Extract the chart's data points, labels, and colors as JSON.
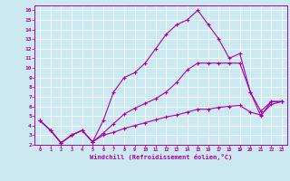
{
  "xlabel": "Windchill (Refroidissement éolien,°C)",
  "bg_color": "#cce8f0",
  "line_color": "#aa00aa",
  "marker": "+",
  "xlim": [
    -0.5,
    23.5
  ],
  "ylim": [
    2,
    16.5
  ],
  "xticks": [
    0,
    1,
    2,
    3,
    4,
    5,
    6,
    7,
    8,
    9,
    10,
    11,
    12,
    13,
    14,
    15,
    16,
    17,
    18,
    19,
    20,
    21,
    22,
    23
  ],
  "yticks": [
    2,
    3,
    4,
    5,
    6,
    7,
    8,
    9,
    10,
    11,
    12,
    13,
    14,
    15,
    16
  ],
  "line1_x": [
    0,
    1,
    2,
    3,
    4,
    5,
    6,
    7,
    8,
    9,
    10,
    11,
    12,
    13,
    14,
    15,
    16,
    17,
    18,
    19,
    20,
    21,
    22,
    23
  ],
  "line1_y": [
    4.5,
    3.5,
    2.2,
    3.0,
    3.5,
    2.3,
    4.5,
    7.5,
    9.0,
    9.5,
    10.5,
    12.0,
    13.5,
    14.5,
    15.0,
    16.0,
    14.5,
    13.0,
    11.0,
    11.5,
    7.5,
    5.5,
    6.5,
    6.5
  ],
  "line2_x": [
    0,
    1,
    2,
    3,
    4,
    5,
    6,
    7,
    8,
    9,
    10,
    11,
    12,
    13,
    14,
    15,
    16,
    17,
    18,
    19,
    20,
    21,
    22,
    23
  ],
  "line2_y": [
    4.5,
    3.5,
    2.2,
    3.0,
    3.5,
    2.3,
    3.2,
    4.2,
    5.2,
    5.8,
    6.3,
    6.8,
    7.5,
    8.5,
    9.8,
    10.5,
    10.5,
    10.5,
    10.5,
    10.5,
    7.5,
    5.0,
    6.5,
    6.5
  ],
  "line3_x": [
    0,
    1,
    2,
    3,
    4,
    5,
    6,
    7,
    8,
    9,
    10,
    11,
    12,
    13,
    14,
    15,
    16,
    17,
    18,
    19,
    20,
    21,
    22,
    23
  ],
  "line3_y": [
    4.5,
    3.5,
    2.2,
    3.0,
    3.5,
    2.3,
    3.0,
    3.3,
    3.7,
    4.0,
    4.3,
    4.6,
    4.9,
    5.1,
    5.4,
    5.7,
    5.7,
    5.9,
    6.0,
    6.1,
    5.4,
    5.1,
    6.2,
    6.5
  ]
}
